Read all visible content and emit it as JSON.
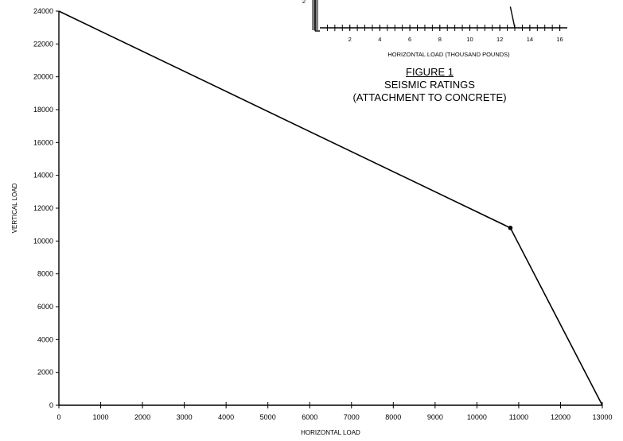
{
  "figure": {
    "label": "FIGURE 1",
    "title_line1": "SEISMIC RATINGS",
    "title_line2": "(ATTACHMENT TO CONCRETE)"
  },
  "chart_data": [
    {
      "type": "line",
      "xlabel": "HORIZONTAL LOAD",
      "ylabel": "VERTICAL LOAD",
      "xlim": [
        0,
        13000
      ],
      "ylim": [
        0,
        24000
      ],
      "xticks": [
        0,
        1000,
        2000,
        3000,
        4000,
        5000,
        6000,
        7000,
        8000,
        9000,
        10000,
        11000,
        12000,
        13000
      ],
      "yticks": [
        0,
        2000,
        4000,
        6000,
        8000,
        10000,
        12000,
        14000,
        16000,
        18000,
        20000,
        22000,
        24000
      ],
      "series": [
        {
          "x": [
            0,
            10800,
            13000
          ],
          "y": [
            24000,
            10800,
            0
          ],
          "marker_index": 1
        }
      ],
      "grid": false
    },
    {
      "type": "line",
      "partial": true,
      "xlabel": "HORIZONTAL LOAD (THOUSAND POUNDS)",
      "xticks": [
        2,
        4,
        6,
        8,
        10,
        12,
        14,
        16
      ],
      "xlim": [
        0,
        16.5
      ],
      "visible_ytick": "2",
      "series": [
        {
          "x": [
            12.7,
            13.0
          ],
          "y": [
            3.5,
            0
          ]
        }
      ]
    }
  ]
}
